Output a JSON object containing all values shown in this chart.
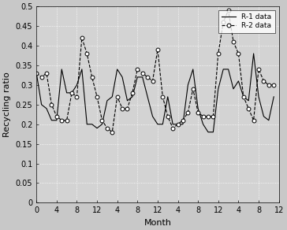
{
  "r1_values": [
    0.33,
    0.25,
    0.24,
    0.21,
    0.21,
    0.34,
    0.28,
    0.28,
    0.3,
    0.34,
    0.2,
    0.2,
    0.19,
    0.2,
    0.26,
    0.27,
    0.34,
    0.32,
    0.26,
    0.27,
    0.32,
    0.32,
    0.27,
    0.22,
    0.2,
    0.2,
    0.27,
    0.2,
    0.2,
    0.2,
    0.3,
    0.34,
    0.24,
    0.2,
    0.18,
    0.18,
    0.29,
    0.34,
    0.34,
    0.29,
    0.31,
    0.27,
    0.26,
    0.38,
    0.27,
    0.22,
    0.21,
    0.27
  ],
  "r2_values": [
    0.33,
    0.32,
    0.33,
    0.25,
    0.22,
    0.21,
    0.21,
    0.28,
    0.27,
    0.42,
    0.38,
    0.32,
    0.27,
    0.21,
    0.19,
    0.18,
    0.27,
    0.24,
    0.24,
    0.28,
    0.34,
    0.33,
    0.32,
    0.31,
    0.39,
    0.27,
    0.22,
    0.19,
    0.2,
    0.21,
    0.23,
    0.29,
    0.23,
    0.22,
    0.22,
    0.22,
    0.38,
    0.46,
    0.49,
    0.41,
    0.38,
    0.27,
    0.24,
    0.21,
    0.34,
    0.31,
    0.3,
    0.3
  ],
  "xlabel": "Month",
  "ylabel": "Recycling ratio",
  "xlim": [
    0,
    48
  ],
  "ylim": [
    0,
    0.5
  ],
  "yticks": [
    0,
    0.05,
    0.1,
    0.15,
    0.2,
    0.25,
    0.3,
    0.35,
    0.4,
    0.45,
    0.5
  ],
  "xticks": [
    0,
    4,
    8,
    12,
    16,
    20,
    24,
    28,
    32,
    36,
    40,
    44,
    48
  ],
  "xticklabels": [
    "0",
    "4",
    "8",
    "12",
    "4",
    "8",
    "12",
    "4",
    "8",
    "12",
    "4",
    "8",
    "12"
  ],
  "legend_labels": [
    "R-1 data",
    "R-2 data"
  ],
  "axes_bg_color": "#d3d3d3",
  "fig_bg_color": "#c8c8c8",
  "line1_color": "#000000",
  "line2_color": "#000000",
  "grid_color": "#ffffff",
  "tick_fontsize": 7,
  "label_fontsize": 8,
  "legend_fontsize": 6.5
}
